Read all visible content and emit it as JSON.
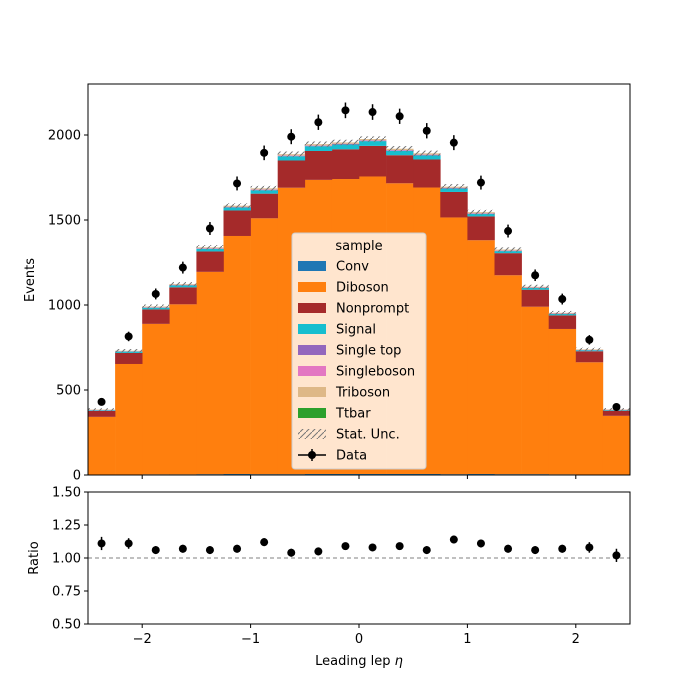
{
  "chart_data": [
    {
      "type": "bar",
      "stacked": true,
      "histogram": true,
      "ylabel": "Events",
      "xlim": [
        -2.5,
        2.5
      ],
      "ylim": [
        0,
        2300
      ],
      "xticks": [
        -2,
        -1,
        0,
        1,
        2
      ],
      "yticks": [
        0,
        500,
        1000,
        1500,
        2000
      ],
      "bin_edges": [
        -2.5,
        -2.25,
        -2.0,
        -1.75,
        -1.5,
        -1.25,
        -1.0,
        -0.75,
        -0.5,
        -0.25,
        0.0,
        0.25,
        0.5,
        0.75,
        1.0,
        1.25,
        1.5,
        1.75,
        2.0,
        2.25,
        2.5
      ],
      "legend": {
        "title": "sample",
        "placement": "center"
      },
      "series": [
        {
          "name": "Conv",
          "color": "#1f77b4",
          "values": [
            2,
            3,
            4,
            4,
            5,
            6,
            5,
            5,
            6,
            6,
            6,
            6,
            6,
            5,
            6,
            5,
            5,
            4,
            3,
            3
          ]
        },
        {
          "name": "Diboson",
          "color": "#ff7f0e",
          "values": [
            340,
            650,
            885,
            1000,
            1190,
            1400,
            1505,
            1685,
            1730,
            1735,
            1750,
            1710,
            1685,
            1510,
            1375,
            1170,
            985,
            855,
            660,
            345
          ]
        },
        {
          "name": "Nonprompt",
          "color": "#a52a2a",
          "values": [
            35,
            65,
            85,
            100,
            120,
            150,
            145,
            160,
            170,
            175,
            180,
            165,
            165,
            150,
            140,
            130,
            100,
            80,
            65,
            30
          ]
        },
        {
          "name": "Signal",
          "color": "#17becf",
          "values": [
            4,
            8,
            10,
            12,
            15,
            18,
            20,
            25,
            28,
            28,
            28,
            26,
            24,
            20,
            15,
            12,
            10,
            8,
            6,
            4
          ]
        },
        {
          "name": "Single top",
          "color": "#9467bd",
          "values": [
            1,
            1,
            2,
            2,
            2,
            2,
            3,
            3,
            3,
            3,
            3,
            3,
            3,
            3,
            2,
            2,
            2,
            2,
            1,
            1
          ]
        },
        {
          "name": "Singleboson",
          "color": "#e377c2",
          "values": [
            1,
            1,
            1,
            1,
            2,
            2,
            2,
            2,
            2,
            2,
            2,
            2,
            2,
            2,
            2,
            2,
            1,
            1,
            1,
            1
          ]
        },
        {
          "name": "Triboson",
          "color": "#deb887",
          "values": [
            2,
            3,
            4,
            4,
            5,
            6,
            6,
            7,
            7,
            7,
            7,
            7,
            7,
            6,
            6,
            5,
            4,
            4,
            3,
            2
          ]
        },
        {
          "name": "Ttbar",
          "color": "#2ca02c",
          "values": [
            0,
            0,
            0,
            0,
            0,
            0,
            0,
            0,
            0,
            0,
            0,
            0,
            0,
            0,
            0,
            0,
            0,
            0,
            0,
            0
          ]
        }
      ],
      "stat_unc": {
        "name": "Stat. Unc.",
        "values": [
          8,
          10,
          12,
          12,
          13,
          14,
          15,
          16,
          16,
          16,
          16,
          16,
          16,
          15,
          14,
          13,
          12,
          11,
          10,
          8
        ]
      },
      "data": {
        "name": "Data",
        "values": [
          430,
          815,
          1065,
          1220,
          1450,
          1715,
          1895,
          1990,
          2075,
          2145,
          2135,
          2110,
          2025,
          1955,
          1720,
          1435,
          1175,
          1035,
          795,
          400
        ],
        "errors": [
          20,
          28,
          32,
          35,
          38,
          41,
          43,
          44,
          45,
          46,
          46,
          45,
          45,
          44,
          41,
          38,
          34,
          32,
          28,
          20
        ]
      }
    },
    {
      "type": "scatter",
      "xlabel": "Leading lep $\\eta$",
      "ylabel": "Ratio",
      "xlim": [
        -2.5,
        2.5
      ],
      "ylim": [
        0.5,
        1.5
      ],
      "xticks": [
        -2,
        -1,
        0,
        1,
        2
      ],
      "xtick_labels": [
        "−2",
        "−1",
        "0",
        "1",
        "2"
      ],
      "yticks": [
        0.5,
        0.75,
        1.0,
        1.25,
        1.5
      ],
      "ytick_labels": [
        "0.50",
        "0.75",
        "1.00",
        "1.25",
        "1.50"
      ],
      "reference_line": 1.0,
      "x": [
        -2.375,
        -2.125,
        -1.875,
        -1.625,
        -1.375,
        -1.125,
        -0.875,
        -0.625,
        -0.375,
        -0.125,
        0.125,
        0.375,
        0.625,
        0.875,
        1.125,
        1.375,
        1.625,
        1.875,
        2.125,
        2.375
      ],
      "values": [
        1.11,
        1.11,
        1.06,
        1.07,
        1.06,
        1.07,
        1.12,
        1.04,
        1.05,
        1.09,
        1.08,
        1.09,
        1.06,
        1.14,
        1.11,
        1.07,
        1.06,
        1.07,
        1.08,
        1.02
      ],
      "errors": [
        0.05,
        0.04,
        0.03,
        0.03,
        0.03,
        0.03,
        0.03,
        0.03,
        0.03,
        0.02,
        0.02,
        0.02,
        0.03,
        0.03,
        0.03,
        0.03,
        0.03,
        0.03,
        0.04,
        0.05
      ]
    }
  ]
}
